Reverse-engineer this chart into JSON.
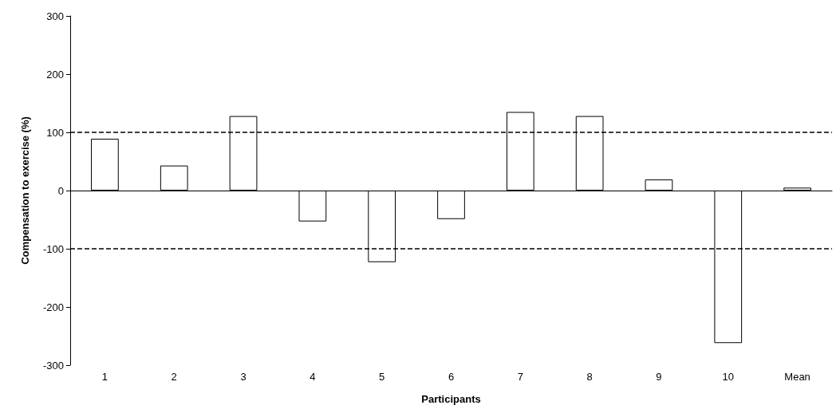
{
  "chart_data": {
    "type": "bar",
    "xlabel": "Participants",
    "ylabel": "Compensation to exercise (%)",
    "categories": [
      "1",
      "2",
      "3",
      "4",
      "5",
      "6",
      "7",
      "8",
      "9",
      "10",
      "Mean"
    ],
    "values": [
      89,
      43,
      128,
      -53,
      -123,
      -49,
      135,
      128,
      19,
      -262,
      5
    ],
    "color": "#ffffff",
    "ylim": [
      -300,
      300
    ],
    "yticks": [
      -300,
      -200,
      -100,
      0,
      100,
      200,
      300
    ],
    "grid": false,
    "ref_lines": [
      {
        "axis": "y",
        "value": 100,
        "line_style": "dashed",
        "color": "#000000"
      },
      {
        "axis": "y",
        "value": -100,
        "line_style": "dashed",
        "color": "#000000"
      }
    ]
  }
}
